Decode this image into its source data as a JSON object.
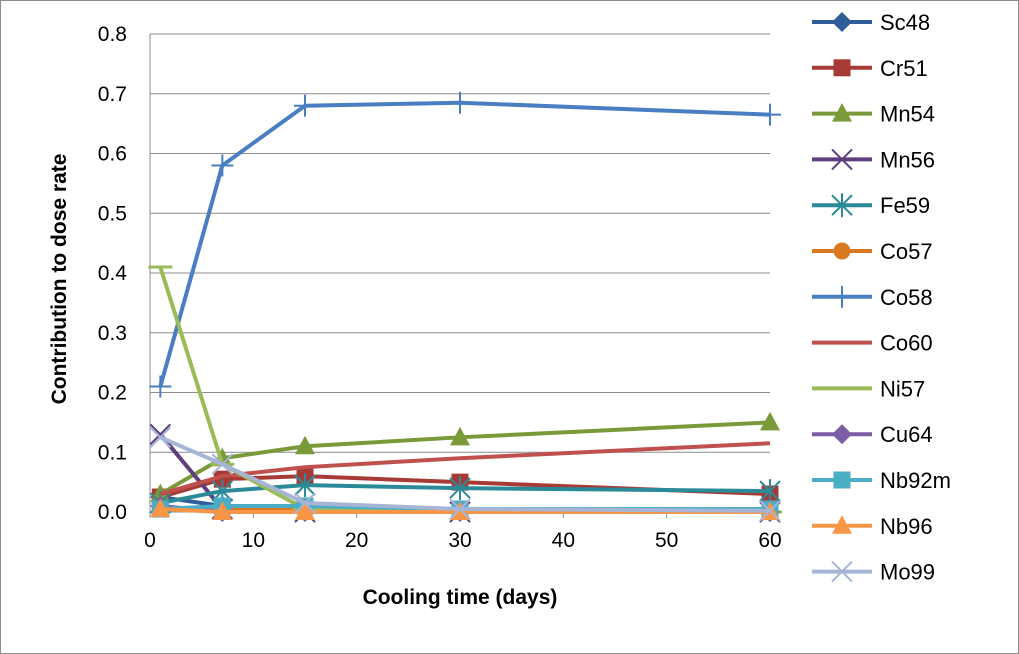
{
  "chart_data": {
    "type": "line",
    "xlabel": "Cooling time (days)",
    "ylabel": "Contribution to dose rate",
    "xlim": [
      0,
      60
    ],
    "ylim": [
      0,
      0.8
    ],
    "xticks": [
      0,
      10,
      20,
      30,
      40,
      50,
      60
    ],
    "yticks": [
      0.0,
      0.1,
      0.2,
      0.3,
      0.4,
      0.5,
      0.6,
      0.7,
      0.8
    ],
    "ytick_labels": [
      "0.0",
      "0.1",
      "0.2",
      "0.3",
      "0.4",
      "0.5",
      "0.6",
      "0.7",
      "0.8"
    ],
    "x": [
      1,
      7,
      15,
      30,
      60
    ],
    "grid": "horizontal",
    "legend_position": "right",
    "series": [
      {
        "name": "Sc48",
        "color": "#2e5d9a",
        "marker": "diamond",
        "values": [
          0.025,
          0.01,
          0.005,
          0.002,
          0.0
        ]
      },
      {
        "name": "Cr51",
        "color": "#a83a36",
        "marker": "square",
        "values": [
          0.025,
          0.055,
          0.06,
          0.05,
          0.03
        ]
      },
      {
        "name": "Mn54",
        "color": "#7a9a3a",
        "marker": "triangle",
        "values": [
          0.03,
          0.09,
          0.11,
          0.125,
          0.15
        ]
      },
      {
        "name": "Mn56",
        "color": "#5d3f7e",
        "marker": "x",
        "values": [
          0.13,
          0.005,
          0.0,
          0.0,
          0.0
        ]
      },
      {
        "name": "Fe59",
        "color": "#2b8a98",
        "marker": "asterisk",
        "values": [
          0.015,
          0.035,
          0.045,
          0.04,
          0.035
        ]
      },
      {
        "name": "Co57",
        "color": "#d97a22",
        "marker": "circle",
        "values": [
          0.005,
          0.005,
          0.005,
          0.005,
          0.005
        ]
      },
      {
        "name": "Co58",
        "color": "#4a7ec2",
        "marker": "plus",
        "values": [
          0.21,
          0.58,
          0.68,
          0.685,
          0.665
        ]
      },
      {
        "name": "Co60",
        "color": "#c0504d",
        "marker": "none",
        "values": [
          0.03,
          0.06,
          0.075,
          0.09,
          0.115
        ]
      },
      {
        "name": "Ni57",
        "color": "#9bbb59",
        "marker": "dash",
        "values": [
          0.41,
          0.08,
          0.005,
          0.0,
          0.0
        ]
      },
      {
        "name": "Cu64",
        "color": "#7d5ca8",
        "marker": "diamond",
        "values": [
          0.01,
          0.0,
          0.0,
          0.0,
          0.0
        ]
      },
      {
        "name": "Nb92m",
        "color": "#4bacc6",
        "marker": "square",
        "values": [
          0.005,
          0.01,
          0.01,
          0.005,
          0.005
        ]
      },
      {
        "name": "Nb96",
        "color": "#f79646",
        "marker": "triangle",
        "values": [
          0.005,
          0.0,
          0.0,
          0.0,
          0.0
        ]
      },
      {
        "name": "Mo99",
        "color": "#a6b4d6",
        "marker": "x",
        "values": [
          0.125,
          0.08,
          0.015,
          0.005,
          0.002
        ]
      }
    ]
  }
}
